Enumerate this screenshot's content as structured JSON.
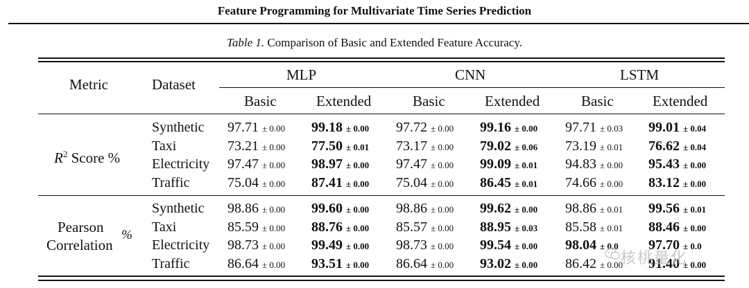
{
  "running_head": "Feature Programming for Multivariate Time Series Prediction",
  "caption": {
    "label": "Table 1.",
    "text": "Comparison of Basic and Extended Feature Accuracy."
  },
  "header": {
    "metric": "Metric",
    "dataset": "Dataset",
    "models": [
      "MLP",
      "CNN",
      "LSTM"
    ],
    "sub": [
      "Basic",
      "Extended"
    ]
  },
  "groups": [
    {
      "metric_sym": "R",
      "metric_sup": "2",
      "metric_rest": " Score %",
      "rows": [
        {
          "dataset": "Synthetic",
          "vals": [
            [
              "97.71",
              "± 0.00"
            ],
            [
              "99.18",
              "± 0.00"
            ],
            [
              "97.72",
              "± 0.00"
            ],
            [
              "99.16",
              "± 0.00"
            ],
            [
              "97.71",
              "± 0.03"
            ],
            [
              "99.01",
              "± 0.04"
            ]
          ]
        },
        {
          "dataset": "Taxi",
          "vals": [
            [
              "73.21",
              "± 0.00"
            ],
            [
              "77.50",
              "± 0.01"
            ],
            [
              "73.17",
              "± 0.00"
            ],
            [
              "79.02",
              "± 0.06"
            ],
            [
              "73.19",
              "± 0.01"
            ],
            [
              "76.62",
              "± 0.04"
            ]
          ]
        },
        {
          "dataset": "Electricity",
          "vals": [
            [
              "97.47",
              "± 0.00"
            ],
            [
              "98.97",
              "± 0.00"
            ],
            [
              "97.47",
              "± 0.00"
            ],
            [
              "99.09",
              "± 0.01"
            ],
            [
              "94.83",
              "± 0.00"
            ],
            [
              "95.43",
              "± 0.00"
            ]
          ]
        },
        {
          "dataset": "Traffic",
          "vals": [
            [
              "75.04",
              "± 0.00"
            ],
            [
              "87.41",
              "± 0.00"
            ],
            [
              "75.04",
              "± 0.00"
            ],
            [
              "86.45",
              "± 0.01"
            ],
            [
              "74.66",
              "± 0.00"
            ],
            [
              "83.12",
              "± 0.00"
            ]
          ]
        }
      ]
    },
    {
      "metric_line1": "Pearson",
      "metric_line2": "Correlation",
      "metric_pct": "%",
      "rows": [
        {
          "dataset": "Synthetic",
          "vals": [
            [
              "98.86",
              "± 0.00"
            ],
            [
              "99.60",
              "± 0.00"
            ],
            [
              "98.86",
              "± 0.00"
            ],
            [
              "99.62",
              "± 0.00"
            ],
            [
              "98.86",
              "± 0.01"
            ],
            [
              "99.56",
              "± 0.01"
            ]
          ]
        },
        {
          "dataset": "Taxi",
          "vals": [
            [
              "85.59",
              "± 0.00"
            ],
            [
              "88.76",
              "± 0.00"
            ],
            [
              "85.57",
              "± 0.00"
            ],
            [
              "88.95",
              "± 0.03"
            ],
            [
              "85.58",
              "± 0.01"
            ],
            [
              "88.46",
              "± 0.00"
            ]
          ]
        },
        {
          "dataset": "Electricity",
          "vals": [
            [
              "98.73",
              "± 0.00"
            ],
            [
              "99.49",
              "± 0.00"
            ],
            [
              "98.73",
              "± 0.00"
            ],
            [
              "99.54",
              "± 0.00"
            ],
            [
              "98.04",
              "± 0.0"
            ],
            [
              "97.70",
              "± 0.0"
            ]
          ]
        },
        {
          "dataset": "Traffic",
          "vals": [
            [
              "86.64",
              "± 0.00"
            ],
            [
              "93.51",
              "± 0.00"
            ],
            [
              "86.64",
              "± 0.00"
            ],
            [
              "93.02",
              "± 0.00"
            ],
            [
              "86.42",
              "± 0.00"
            ],
            [
              "91.40",
              "± 0.00"
            ]
          ]
        }
      ]
    }
  ],
  "watermark": "核桃量化"
}
